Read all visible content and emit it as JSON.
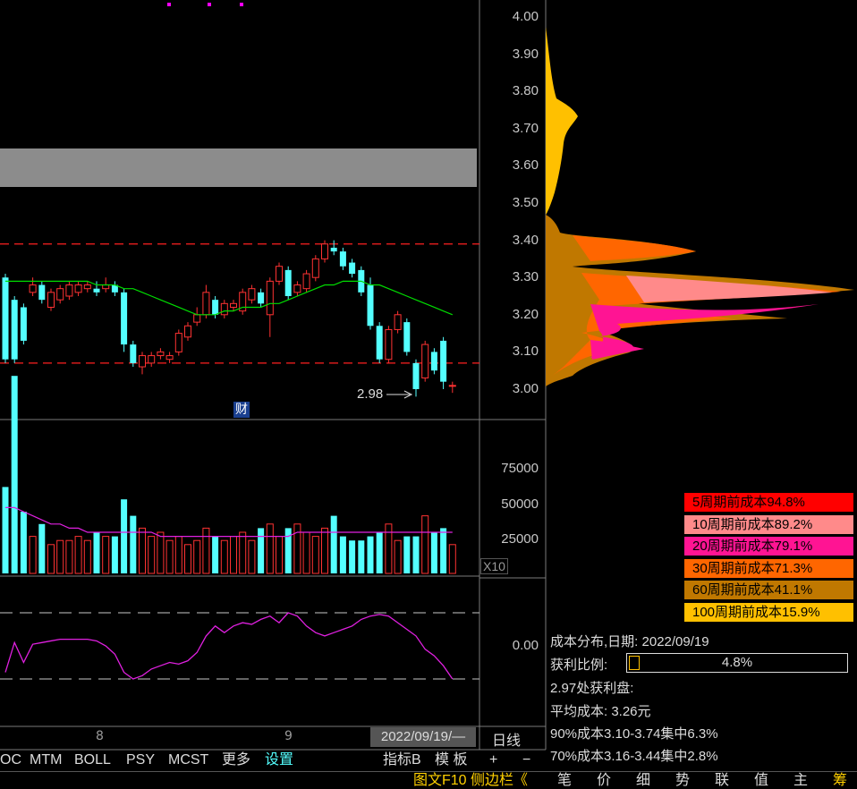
{
  "price_axis": {
    "ticks": [
      "4.00",
      "3.90",
      "3.80",
      "3.70",
      "3.60",
      "3.50",
      "3.40",
      "3.30",
      "3.20",
      "3.10",
      "3.00"
    ]
  },
  "volume_axis": {
    "ticks": [
      "75000",
      "50000",
      "25000"
    ],
    "unit": "X10"
  },
  "indicator_axis": {
    "ticks": [
      "0.00"
    ]
  },
  "price_chart": {
    "low_marker_label": "2.98",
    "finance_badge": "财"
  },
  "chart_data": {
    "type": "candlestick",
    "ylim": [
      2.95,
      4.05
    ],
    "upper_band": 3.39,
    "lower_band": 3.07,
    "low_marker": 2.98,
    "candles": [
      [
        3.3,
        3.08,
        3.31,
        3.07
      ],
      [
        3.24,
        3.08,
        3.25,
        3.07
      ],
      [
        3.22,
        3.13,
        3.23,
        3.12
      ],
      [
        3.26,
        3.28,
        3.3,
        3.25
      ],
      [
        3.28,
        3.24,
        3.29,
        3.23
      ],
      [
        3.22,
        3.26,
        3.27,
        3.21
      ],
      [
        3.24,
        3.27,
        3.28,
        3.23
      ],
      [
        3.25,
        3.28,
        3.29,
        3.24
      ],
      [
        3.26,
        3.28,
        3.29,
        3.25
      ],
      [
        3.27,
        3.28,
        3.29,
        3.26
      ],
      [
        3.27,
        3.26,
        3.29,
        3.25
      ],
      [
        3.27,
        3.28,
        3.3,
        3.26
      ],
      [
        3.28,
        3.26,
        3.29,
        3.25
      ],
      [
        3.26,
        3.12,
        3.27,
        3.1
      ],
      [
        3.12,
        3.07,
        3.13,
        3.06
      ],
      [
        3.06,
        3.09,
        3.1,
        3.04
      ],
      [
        3.07,
        3.09,
        3.1,
        3.06
      ],
      [
        3.09,
        3.1,
        3.11,
        3.08
      ],
      [
        3.08,
        3.09,
        3.1,
        3.07
      ],
      [
        3.1,
        3.15,
        3.16,
        3.09
      ],
      [
        3.14,
        3.17,
        3.18,
        3.13
      ],
      [
        3.18,
        3.2,
        3.22,
        3.17
      ],
      [
        3.2,
        3.26,
        3.28,
        3.19
      ],
      [
        3.24,
        3.2,
        3.25,
        3.19
      ],
      [
        3.2,
        3.23,
        3.24,
        3.19
      ],
      [
        3.22,
        3.23,
        3.24,
        3.21
      ],
      [
        3.21,
        3.26,
        3.27,
        3.2
      ],
      [
        3.24,
        3.27,
        3.28,
        3.23
      ],
      [
        3.26,
        3.23,
        3.27,
        3.22
      ],
      [
        3.2,
        3.29,
        3.3,
        3.14
      ],
      [
        3.29,
        3.33,
        3.34,
        3.28
      ],
      [
        3.32,
        3.25,
        3.33,
        3.24
      ],
      [
        3.26,
        3.28,
        3.29,
        3.25
      ],
      [
        3.27,
        3.31,
        3.32,
        3.26
      ],
      [
        3.3,
        3.35,
        3.36,
        3.29
      ],
      [
        3.35,
        3.39,
        3.4,
        3.34
      ],
      [
        3.38,
        3.37,
        3.4,
        3.36
      ],
      [
        3.37,
        3.33,
        3.38,
        3.32
      ],
      [
        3.34,
        3.31,
        3.35,
        3.3
      ],
      [
        3.32,
        3.26,
        3.33,
        3.25
      ],
      [
        3.28,
        3.17,
        3.3,
        3.16
      ],
      [
        3.17,
        3.08,
        3.18,
        3.07
      ],
      [
        3.08,
        3.16,
        3.17,
        3.07
      ],
      [
        3.16,
        3.2,
        3.21,
        3.15
      ],
      [
        3.18,
        3.1,
        3.19,
        3.09
      ],
      [
        3.07,
        3.0,
        3.08,
        2.98
      ],
      [
        3.03,
        3.12,
        3.13,
        3.02
      ],
      [
        3.1,
        3.05,
        3.11,
        3.04
      ],
      [
        3.13,
        3.02,
        3.14,
        3.0
      ],
      [
        3.01,
        3.01,
        3.02,
        2.99
      ]
    ],
    "ma_line": [
      3.29,
      3.29,
      3.29,
      3.29,
      3.29,
      3.29,
      3.29,
      3.29,
      3.29,
      3.29,
      3.28,
      3.28,
      3.28,
      3.27,
      3.27,
      3.26,
      3.25,
      3.24,
      3.23,
      3.22,
      3.21,
      3.2,
      3.2,
      3.2,
      3.21,
      3.21,
      3.22,
      3.22,
      3.22,
      3.23,
      3.23,
      3.24,
      3.25,
      3.26,
      3.27,
      3.28,
      3.28,
      3.29,
      3.29,
      3.29,
      3.28,
      3.28,
      3.27,
      3.26,
      3.25,
      3.24,
      3.23,
      3.22,
      3.21,
      3.2
    ],
    "volumes": [
      21,
      48,
      15,
      9,
      12,
      7,
      8,
      8,
      9,
      8,
      10,
      9,
      9,
      18,
      14,
      11,
      9,
      10,
      8,
      9,
      7,
      8,
      11,
      9,
      8,
      9,
      10,
      8,
      11,
      12,
      9,
      11,
      12,
      10,
      9,
      11,
      14,
      9,
      8,
      8,
      9,
      10,
      12,
      8,
      9,
      9,
      14,
      10,
      11,
      7
    ],
    "volume_ma": [
      16,
      16,
      15,
      14,
      13,
      12,
      12,
      11,
      11,
      10,
      10,
      10,
      10,
      10,
      10,
      10,
      10,
      9,
      9,
      9,
      9,
      9,
      9,
      9,
      9,
      9,
      9,
      9,
      9,
      9,
      9,
      9,
      10,
      10,
      10,
      10,
      10,
      10,
      10,
      10,
      10,
      10,
      10,
      10,
      10,
      10,
      10,
      10,
      10,
      10
    ],
    "oscillator": [
      -0.8,
      0.1,
      -0.5,
      0.05,
      0.1,
      0.15,
      0.2,
      0.2,
      0.2,
      0.2,
      0.15,
      0.0,
      -0.25,
      -0.8,
      -1.0,
      -0.9,
      -0.7,
      -0.6,
      -0.5,
      -0.55,
      -0.45,
      -0.2,
      0.3,
      0.6,
      0.4,
      0.6,
      0.7,
      0.65,
      0.8,
      0.9,
      0.7,
      1.0,
      0.9,
      0.6,
      0.4,
      0.3,
      0.4,
      0.5,
      0.6,
      0.8,
      0.9,
      0.95,
      0.9,
      0.7,
      0.5,
      0.3,
      -0.1,
      -0.3,
      -0.6,
      -1.0
    ]
  },
  "time_axis": {
    "ticks": [
      "8",
      "9"
    ],
    "cursor_date": "2022/09/19/—",
    "period": "日线"
  },
  "indicator_tabs": [
    "OC",
    "MTM",
    "BOLL",
    "PSY",
    "MCST",
    "更多",
    "设置"
  ],
  "right_tools": [
    "指标B",
    "模 板",
    "+",
    "−"
  ],
  "cost_legend": [
    {
      "label": "5周期前成本94.8%",
      "color": "#ff0000"
    },
    {
      "label": "10周期前成本89.2%",
      "color": "#ff8a8a"
    },
    {
      "label": "20周期前成本79.1%",
      "color": "#ff1493"
    },
    {
      "label": "30周期前成本71.3%",
      "color": "#ff6600"
    },
    {
      "label": "60周期前成本41.1%",
      "color": "#c07800"
    },
    {
      "label": "100周期前成本15.9%",
      "color": "#ffc000"
    }
  ],
  "cost_info": {
    "title": "成本分布,日期: 2022/09/19",
    "profit_label": "获利比例:",
    "profit_value": "4.8%",
    "profit_ratio": 0.048,
    "profit_at": "2.97处获利盘:",
    "avg_cost": "平均成本: 3.26元",
    "c90": "90%成本3.10-3.74集中6.3%",
    "c70": "70%成本3.16-3.44集中2.8%"
  },
  "bottom_tabs": {
    "left_label": "图文F10 侧边栏《",
    "items": [
      "笔",
      "价",
      "细",
      "势",
      "联",
      "值",
      "主",
      "筹"
    ]
  },
  "colors": {
    "up": "#ff3232",
    "down": "#54ffff",
    "ma": "#00dd00",
    "band": "#ff2020",
    "osc": "#e020e0",
    "grid": "#7a7a7a"
  }
}
